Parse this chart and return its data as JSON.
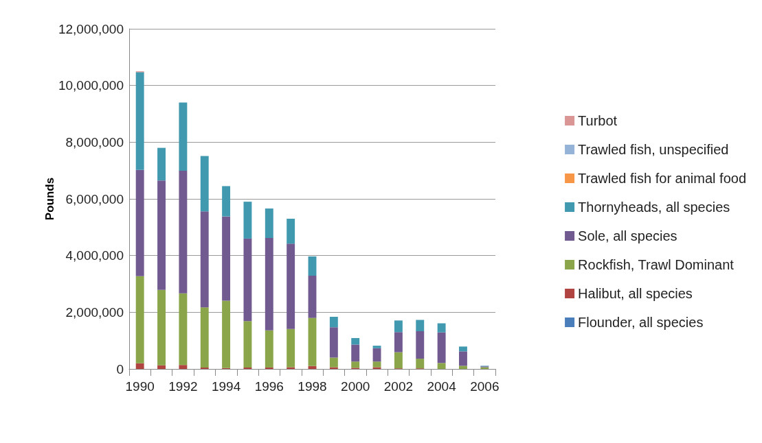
{
  "chart_data": {
    "type": "bar",
    "stacked": true,
    "ylabel": "Pounds",
    "categories": [
      "1990",
      null,
      "1992",
      null,
      "1994",
      null,
      "1996",
      null,
      "1998",
      null,
      "2000",
      null,
      "2002",
      null,
      "2004",
      null,
      "2006"
    ],
    "ylim": [
      0,
      12000000
    ],
    "yticks": [
      0,
      {
        "value": 2000000,
        "label": "2,000,000"
      },
      {
        "value": 4000000,
        "label": "4,000,000"
      },
      {
        "value": 6000000,
        "label": "6,000,000"
      },
      {
        "value": 8000000,
        "label": "8,000,000"
      },
      {
        "value": 10000000,
        "label": "10,000,000"
      },
      {
        "value": 12000000,
        "label": "12,000,000"
      }
    ],
    "grid": "y",
    "legend": "right",
    "series": [
      {
        "name": "Flounder, all species",
        "color": "#4a7ebb",
        "values": [
          null,
          null,
          null,
          null,
          null,
          null,
          null,
          null,
          null,
          null,
          null,
          null,
          null,
          null,
          null,
          null,
          null
        ]
      },
      {
        "name": "Halibut, all species",
        "color": "#b04441",
        "values": [
          200000,
          130000,
          140000,
          50000,
          30000,
          50000,
          50000,
          60000,
          100000,
          60000,
          40000,
          60000,
          20000,
          20000,
          null,
          null,
          null
        ]
      },
      {
        "name": "Rockfish, Trawl Dominant",
        "color": "#8aa54a",
        "values": [
          3070000,
          2660000,
          2530000,
          2120000,
          2380000,
          1640000,
          1310000,
          1350000,
          1700000,
          340000,
          220000,
          200000,
          570000,
          340000,
          210000,
          110000,
          60000
        ]
      },
      {
        "name": "Sole, all species",
        "color": "#715a8f",
        "values": [
          3750000,
          3860000,
          4320000,
          3390000,
          2970000,
          2910000,
          3260000,
          3010000,
          1490000,
          1070000,
          600000,
          470000,
          710000,
          970000,
          1080000,
          510000,
          30000
        ]
      },
      {
        "name": "Thornyheads, all species",
        "color": "#4199b0",
        "values": [
          3450000,
          1150000,
          2410000,
          1950000,
          1070000,
          1300000,
          1040000,
          880000,
          680000,
          370000,
          230000,
          90000,
          410000,
          400000,
          320000,
          170000,
          20000
        ]
      },
      {
        "name": "Trawled fish for animal food",
        "color": "#f79646",
        "values": [
          null,
          null,
          null,
          null,
          null,
          null,
          null,
          null,
          null,
          null,
          null,
          null,
          null,
          null,
          null,
          null,
          null
        ]
      },
      {
        "name": "Trawled fish, unspecified",
        "color": "#95b3d7",
        "values": [
          null,
          null,
          null,
          null,
          null,
          null,
          null,
          null,
          null,
          null,
          null,
          null,
          null,
          null,
          null,
          null,
          10000
        ]
      },
      {
        "name": "Turbot",
        "color": "#d99694",
        "values": [
          30000,
          null,
          null,
          null,
          null,
          null,
          null,
          null,
          null,
          null,
          null,
          null,
          null,
          null,
          null,
          null,
          null
        ]
      }
    ]
  }
}
